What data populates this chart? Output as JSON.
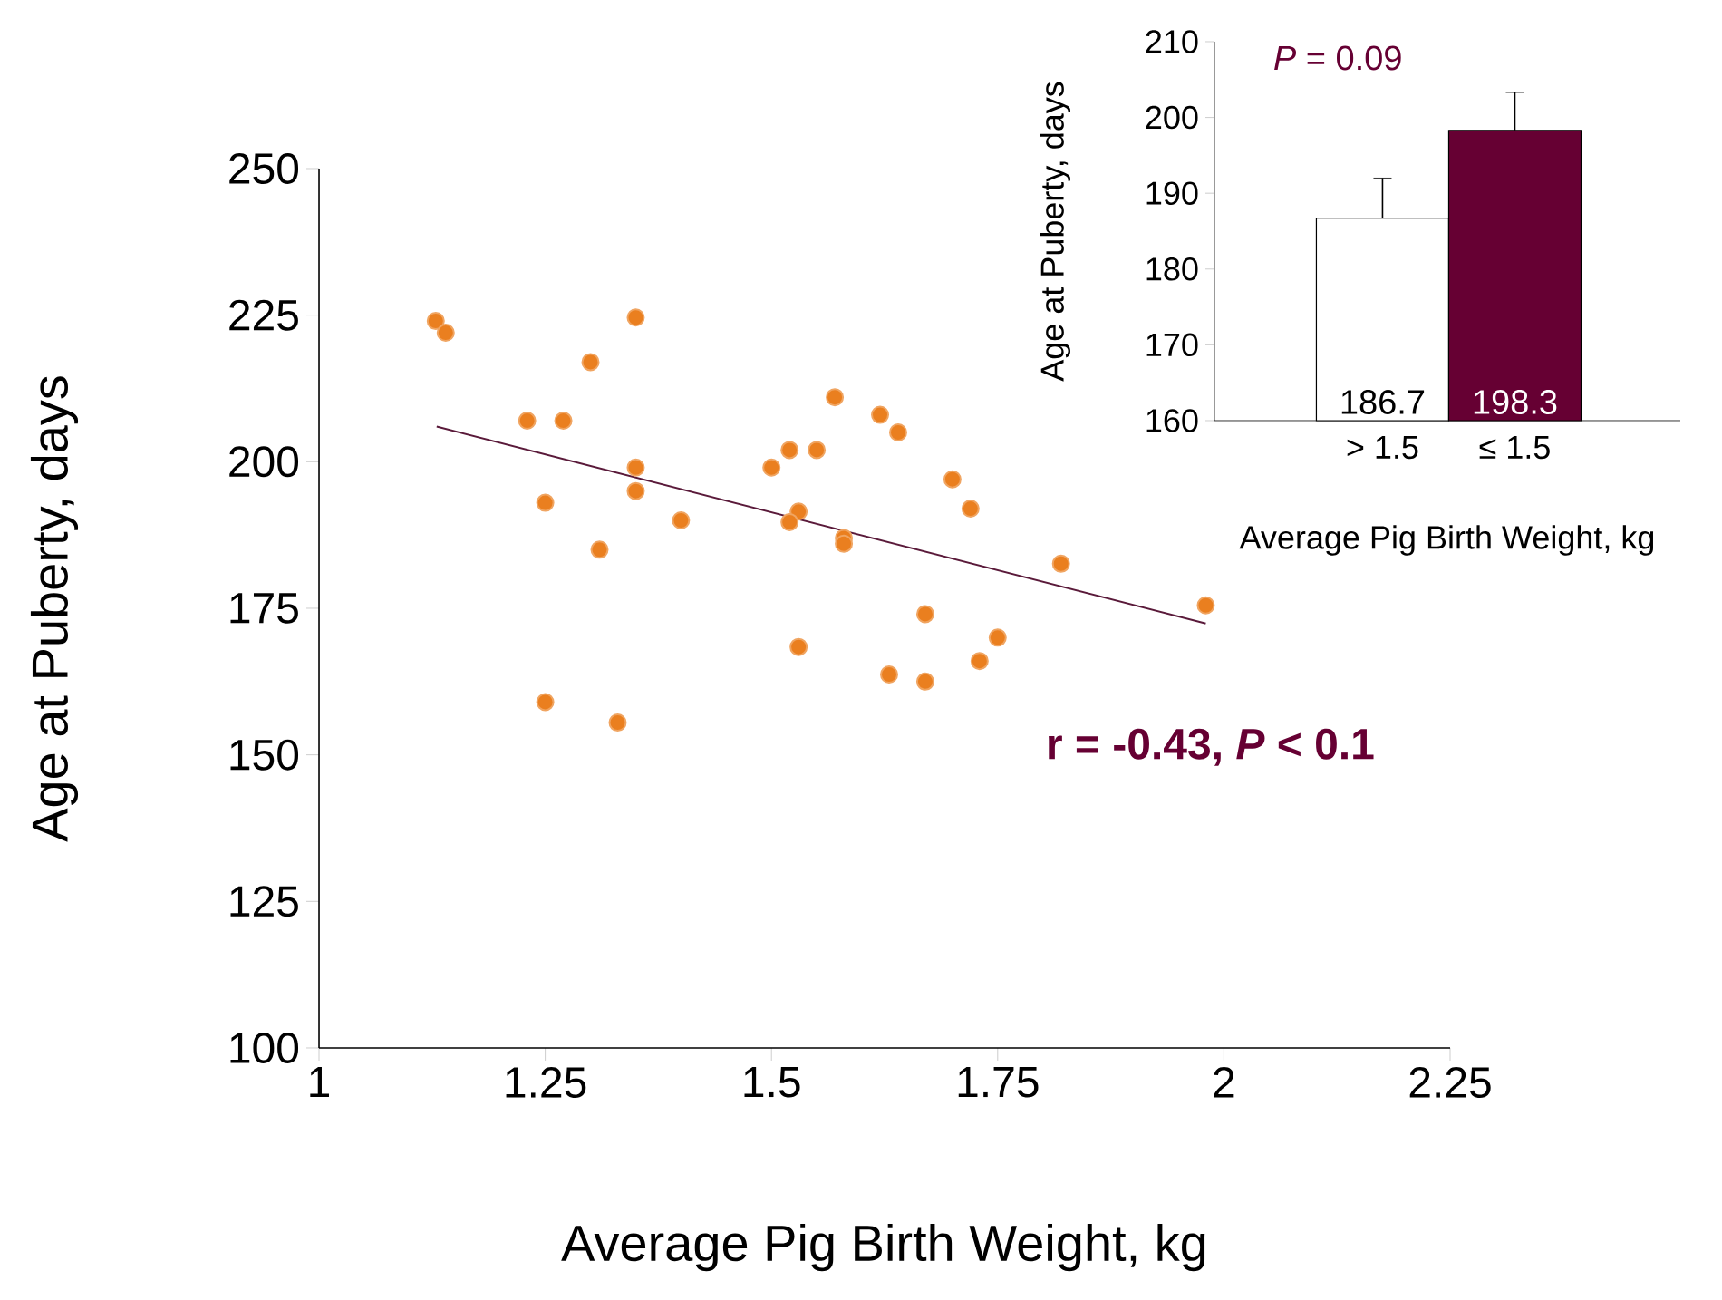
{
  "chart_data": [
    {
      "type": "scatter",
      "xlabel": "Average Pig Birth Weight, kg",
      "ylabel": "Age at Puberty, days",
      "xlim": [
        1,
        2.25
      ],
      "xticks": [
        1,
        1.25,
        1.5,
        1.75,
        2,
        2.25
      ],
      "ylim": [
        100,
        250
      ],
      "yticks": [
        100,
        125,
        150,
        175,
        200,
        225,
        250
      ],
      "series": [
        {
          "type": "scatter",
          "marker": "circle",
          "color": "#ea7f1f",
          "x": [
            1.129,
            1.14,
            1.35,
            1.3,
            1.23,
            1.27,
            1.25,
            1.31,
            1.35,
            1.35,
            1.4,
            1.25,
            1.33,
            1.57,
            1.62,
            1.64,
            1.52,
            1.55,
            1.5,
            1.7,
            1.72,
            1.53,
            1.52,
            1.58,
            1.58,
            1.82,
            1.98,
            1.67,
            1.53,
            1.75,
            1.73,
            1.63,
            1.67
          ],
          "values": [
            224,
            222,
            224.6,
            217,
            207,
            207,
            193,
            185,
            199,
            195,
            190,
            159,
            155.5,
            211,
            208,
            205,
            202,
            202,
            199,
            197,
            192,
            191.5,
            189.7,
            187,
            186,
            182.6,
            175.5,
            174,
            168.4,
            170,
            166,
            163.7,
            162.5
          ]
        },
        {
          "type": "line",
          "marker": "none",
          "color": "#5a1a3a",
          "line_style": "solid",
          "x": [
            1.13,
            1.98
          ],
          "values": [
            206,
            172.4
          ]
        }
      ],
      "annotations": [
        "r = -0.43, *P* < 0.1"
      ]
    },
    {
      "type": "bar",
      "categories": [
        "> 1.5",
        "≤ 1.5"
      ],
      "values": [
        186.7,
        198.3
      ],
      "colors": [
        "#ffffff",
        "#660033"
      ],
      "errors": [
        5.3,
        5
      ],
      "ylim": [
        160,
        210
      ],
      "yticks": [
        160,
        170,
        180,
        190,
        200,
        210
      ],
      "data_labels": true,
      "xlabel": "Average Pig Birth Weight, kg",
      "ylabel": "Age at Puberty, days",
      "annotations": [
        "*P* = 0.09"
      ]
    }
  ]
}
